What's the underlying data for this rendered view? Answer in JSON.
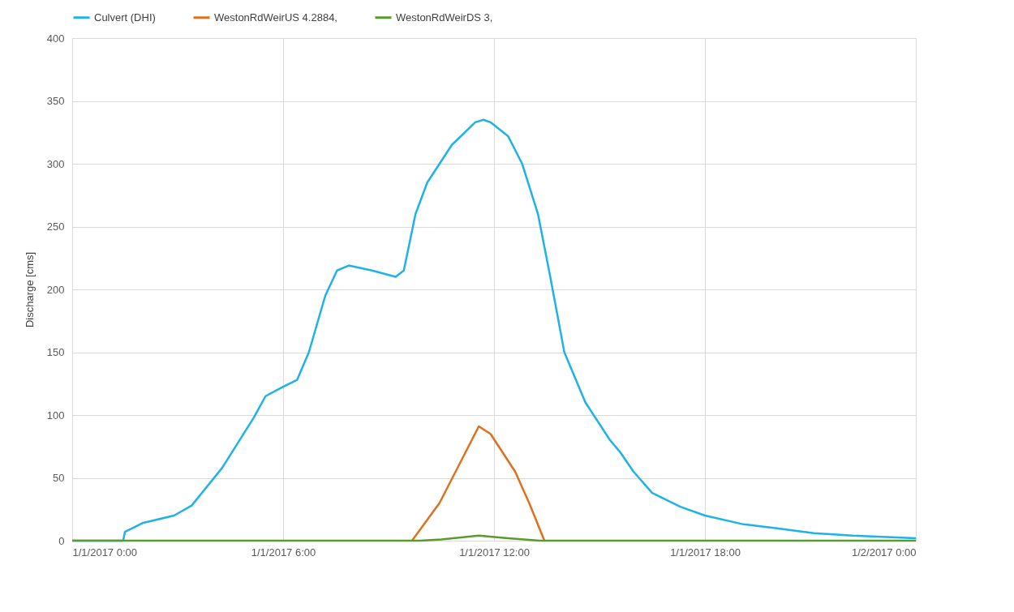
{
  "chart_data": {
    "type": "line",
    "ylabel": "Discharge [cms]",
    "xlim": [
      "2017-01-01T00:00",
      "2017-01-02T00:00"
    ],
    "xticks": [
      {
        "value": "2017-01-01T00:00",
        "label": "1/1/2017 0:00"
      },
      {
        "value": "2017-01-01T06:00",
        "label": "1/1/2017 6:00"
      },
      {
        "value": "2017-01-01T12:00",
        "label": "1/1/2017 12:00"
      },
      {
        "value": "2017-01-01T18:00",
        "label": "1/1/2017 18:00"
      },
      {
        "value": "2017-01-02T00:00",
        "label": "1/2/2017 0:00"
      }
    ],
    "ylim": [
      0,
      400
    ],
    "yticks": [
      0,
      50,
      100,
      150,
      200,
      250,
      300,
      350,
      400
    ],
    "grid": true,
    "legend": "top",
    "line_style": "solid",
    "marker": "none",
    "series": [
      {
        "name": "Culvert (DHI)",
        "color": "#1fb2e8",
        "x": [
          "2017-01-01T00:00",
          "2017-01-01T01:27",
          "2017-01-01T01:30",
          "2017-01-01T02:00",
          "2017-01-01T02:54",
          "2017-01-01T03:24",
          "2017-01-01T04:16",
          "2017-01-01T05:10",
          "2017-01-01T05:30",
          "2017-01-01T05:58",
          "2017-01-01T06:24",
          "2017-01-01T06:44",
          "2017-01-01T07:12",
          "2017-01-01T07:32",
          "2017-01-01T07:52",
          "2017-01-01T08:32",
          "2017-01-01T09:12",
          "2017-01-01T09:26",
          "2017-01-01T09:46",
          "2017-01-01T10:06",
          "2017-01-01T10:48",
          "2017-01-01T11:28",
          "2017-01-01T11:42",
          "2017-01-01T11:54",
          "2017-01-01T12:24",
          "2017-01-01T12:48",
          "2017-01-01T13:15",
          "2017-01-01T13:36",
          "2017-01-01T14:00",
          "2017-01-01T14:36",
          "2017-01-01T15:18",
          "2017-01-01T15:36",
          "2017-01-01T15:58",
          "2017-01-01T16:30",
          "2017-01-01T17:18",
          "2017-01-01T18:00",
          "2017-01-01T19:06",
          "2017-01-01T20:00",
          "2017-01-01T21:06",
          "2017-01-01T22:12",
          "2017-01-02T00:00"
        ],
        "values": [
          0,
          0,
          7,
          14,
          20,
          28,
          58,
          98,
          115,
          122,
          128,
          150,
          195,
          215,
          219,
          215,
          210,
          215,
          260,
          285,
          315,
          333,
          335,
          333,
          322,
          300,
          260,
          210,
          150,
          110,
          80,
          70,
          55,
          38,
          27,
          20,
          13,
          10,
          6,
          4,
          2
        ]
      },
      {
        "name": "WestonRdWeirUS 4.2884,",
        "color": "#e0701e",
        "x": [
          "2017-01-01T09:40",
          "2017-01-01T10:27",
          "2017-01-01T11:00",
          "2017-01-01T11:34",
          "2017-01-01T11:54",
          "2017-01-01T12:36",
          "2017-01-01T13:00",
          "2017-01-01T13:26"
        ],
        "values": [
          0,
          30,
          60,
          91,
          85,
          55,
          30,
          0
        ]
      },
      {
        "name": "WestonRdWeirDS 3,",
        "color": "#5a9a2e",
        "x": [
          "2017-01-01T00:00",
          "2017-01-01T09:54",
          "2017-01-01T10:30",
          "2017-01-01T11:34",
          "2017-01-01T12:24",
          "2017-01-01T13:18",
          "2017-01-02T00:00"
        ],
        "values": [
          0,
          0,
          1,
          4,
          2,
          0,
          0
        ]
      }
    ]
  }
}
